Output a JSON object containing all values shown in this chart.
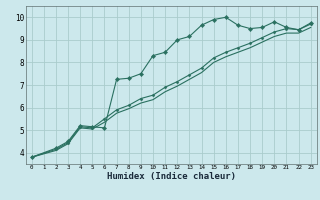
{
  "xlabel": "Humidex (Indice chaleur)",
  "bg_color": "#cce8ec",
  "grid_color": "#aacccc",
  "line_color": "#2a7060",
  "xlim": [
    -0.5,
    23.5
  ],
  "ylim": [
    3.5,
    10.5
  ],
  "xticks": [
    0,
    1,
    2,
    3,
    4,
    5,
    6,
    7,
    8,
    9,
    10,
    11,
    12,
    13,
    14,
    15,
    16,
    17,
    18,
    19,
    20,
    21,
    22,
    23
  ],
  "yticks": [
    4,
    5,
    6,
    7,
    8,
    9,
    10
  ],
  "line1_x": [
    0,
    2,
    3,
    4,
    5,
    6,
    7,
    8,
    9,
    10,
    11,
    12,
    13,
    14,
    15,
    16,
    17,
    18,
    19,
    20,
    21,
    22,
    23
  ],
  "line1_y": [
    3.8,
    4.2,
    4.5,
    5.2,
    5.15,
    5.1,
    7.25,
    7.3,
    7.5,
    8.3,
    8.45,
    9.0,
    9.15,
    9.65,
    9.9,
    10.0,
    9.65,
    9.5,
    9.55,
    9.8,
    9.55,
    9.45,
    9.75
  ],
  "line2_x": [
    0,
    2,
    3,
    4,
    5,
    6,
    7,
    8,
    9,
    10,
    11,
    12,
    13,
    14,
    15,
    16,
    17,
    18,
    19,
    20,
    21,
    22,
    23
  ],
  "line2_y": [
    3.8,
    4.15,
    4.45,
    5.15,
    5.1,
    5.5,
    5.9,
    6.1,
    6.4,
    6.55,
    6.9,
    7.15,
    7.45,
    7.75,
    8.2,
    8.45,
    8.65,
    8.85,
    9.1,
    9.35,
    9.5,
    9.45,
    9.7
  ],
  "line3_x": [
    0,
    2,
    3,
    4,
    5,
    6,
    7,
    8,
    9,
    10,
    11,
    12,
    13,
    14,
    15,
    16,
    17,
    18,
    19,
    20,
    21,
    22,
    23
  ],
  "line3_y": [
    3.8,
    4.1,
    4.4,
    5.1,
    5.05,
    5.35,
    5.75,
    5.95,
    6.2,
    6.35,
    6.7,
    6.95,
    7.25,
    7.55,
    8.0,
    8.25,
    8.45,
    8.65,
    8.9,
    9.15,
    9.3,
    9.3,
    9.55
  ]
}
